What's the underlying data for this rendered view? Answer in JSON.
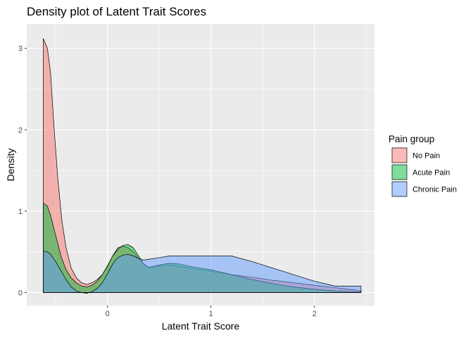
{
  "chart_data": {
    "type": "area",
    "subtype": "density",
    "title": "Density plot of Latent Trait Scores",
    "xlabel": "Latent Trait Score",
    "ylabel": "Density",
    "xlim": [
      -0.78,
      2.58
    ],
    "ylim": [
      -0.16,
      3.3
    ],
    "x_ticks": [
      0,
      1,
      2
    ],
    "y_ticks": [
      0,
      1,
      2,
      3
    ],
    "grid": true,
    "legend": {
      "title": "Pain group",
      "position": "right"
    },
    "series": [
      {
        "name": "No Pain",
        "color": "#F8766D",
        "x": [
          -0.62,
          -0.58,
          -0.55,
          -0.52,
          -0.48,
          -0.44,
          -0.4,
          -0.35,
          -0.3,
          -0.25,
          -0.2,
          -0.15,
          -0.1,
          -0.05,
          0.0,
          0.05,
          0.1,
          0.15,
          0.2,
          0.25,
          0.3,
          0.35,
          0.4,
          0.45,
          0.5,
          0.6,
          0.7,
          0.8,
          0.9,
          1.0,
          1.2,
          1.4,
          1.6,
          1.8,
          2.0,
          2.2,
          2.4,
          2.45
        ],
        "y": [
          3.12,
          3.0,
          2.7,
          2.1,
          1.4,
          0.88,
          0.55,
          0.3,
          0.18,
          0.12,
          0.1,
          0.12,
          0.16,
          0.22,
          0.32,
          0.45,
          0.55,
          0.57,
          0.55,
          0.5,
          0.42,
          0.35,
          0.31,
          0.31,
          0.33,
          0.34,
          0.32,
          0.3,
          0.28,
          0.26,
          0.22,
          0.19,
          0.15,
          0.12,
          0.09,
          0.06,
          0.03,
          0.02
        ]
      },
      {
        "name": "Acute Pain",
        "color": "#00BA38",
        "x": [
          -0.62,
          -0.58,
          -0.55,
          -0.5,
          -0.45,
          -0.4,
          -0.35,
          -0.3,
          -0.25,
          -0.2,
          -0.15,
          -0.1,
          -0.05,
          0.0,
          0.05,
          0.1,
          0.15,
          0.2,
          0.25,
          0.3,
          0.35,
          0.4,
          0.5,
          0.6,
          0.7,
          0.8,
          1.0,
          1.2,
          1.4,
          1.6,
          1.8,
          2.0,
          2.2,
          2.4,
          2.45
        ],
        "y": [
          1.1,
          1.06,
          0.95,
          0.7,
          0.45,
          0.28,
          0.18,
          0.12,
          0.08,
          0.07,
          0.09,
          0.14,
          0.22,
          0.33,
          0.45,
          0.53,
          0.58,
          0.59,
          0.55,
          0.45,
          0.35,
          0.31,
          0.34,
          0.36,
          0.35,
          0.32,
          0.28,
          0.22,
          0.16,
          0.11,
          0.07,
          0.04,
          0.02,
          0.01,
          0.01
        ]
      },
      {
        "name": "Chronic Pain",
        "color": "#619CFF",
        "x": [
          -0.62,
          -0.58,
          -0.55,
          -0.5,
          -0.45,
          -0.4,
          -0.35,
          -0.3,
          -0.25,
          -0.2,
          -0.15,
          -0.1,
          -0.05,
          0.0,
          0.05,
          0.1,
          0.15,
          0.2,
          0.25,
          0.3,
          0.35,
          0.4,
          0.5,
          0.6,
          0.7,
          0.8,
          1.0,
          1.2,
          1.4,
          1.6,
          1.8,
          2.0,
          2.2,
          2.4,
          2.45
        ],
        "y": [
          0.51,
          0.5,
          0.47,
          0.38,
          0.27,
          0.16,
          0.07,
          0.02,
          0.0,
          -0.01,
          0.01,
          0.05,
          0.12,
          0.23,
          0.35,
          0.43,
          0.46,
          0.47,
          0.45,
          0.42,
          0.4,
          0.41,
          0.43,
          0.45,
          0.45,
          0.45,
          0.45,
          0.45,
          0.38,
          0.3,
          0.22,
          0.14,
          0.08,
          0.08,
          0.08
        ]
      }
    ]
  }
}
